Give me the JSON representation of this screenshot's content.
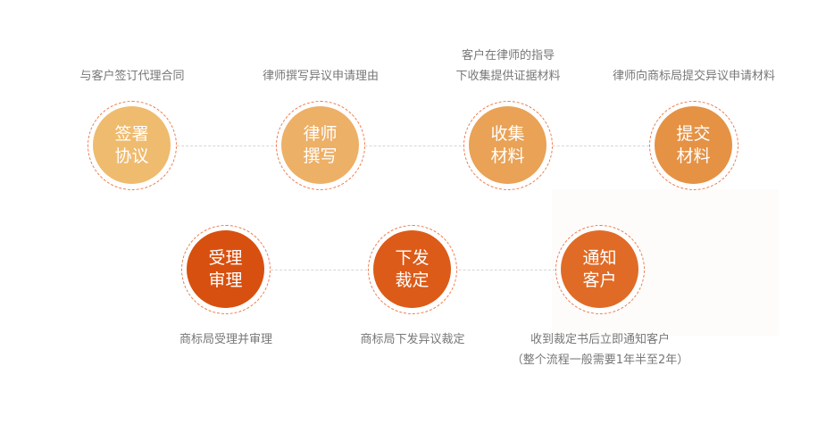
{
  "top_steps": [
    {
      "line1": "签署",
      "line2": "协议",
      "desc": [
        "与客户签订代理合同"
      ],
      "color": "#efbb6e"
    },
    {
      "line1": "律师",
      "line2": "撰写",
      "desc": [
        "律师撰写异议申请理由"
      ],
      "color": "#edb067"
    },
    {
      "line1": "收集",
      "line2": "材料",
      "desc": [
        "客户在律师的指导",
        "下收集提供证据材料"
      ],
      "color": "#e9a256"
    },
    {
      "line1": "提交",
      "line2": "材料",
      "desc": [
        "律师向商标局提交异议申请材料"
      ],
      "color": "#e59245"
    }
  ],
  "bottom_steps": [
    {
      "line1": "受理",
      "line2": "审理",
      "desc": [
        "商标局受理并审理"
      ],
      "color": "#d8500f"
    },
    {
      "line1": "下发",
      "line2": "裁定",
      "desc": [
        "商标局下发异议裁定"
      ],
      "color": "#dc5b19"
    },
    {
      "line1": "通知",
      "line2": "客户",
      "desc": [
        "收到裁定书后立即通知客户",
        "（整个流程一般需要1年半至2年）"
      ],
      "color": "#e06b26"
    }
  ]
}
